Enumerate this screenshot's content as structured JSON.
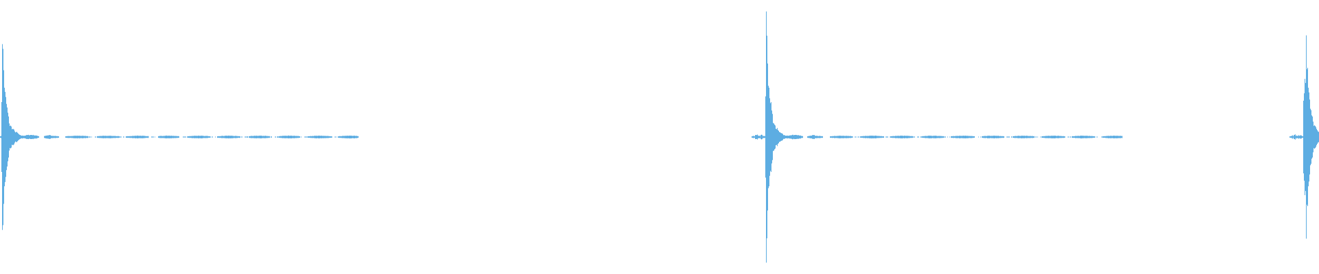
{
  "chart_data": {
    "type": "area",
    "variant": "audio-waveform",
    "color": "#5dade2",
    "background": "#ffffff",
    "axes_visible": false,
    "grid": false,
    "ylim": [
      -1,
      1
    ],
    "xlim": [
      0,
      1
    ],
    "events": [
      {
        "t": 0.001,
        "peak_amplitude": 0.62,
        "lower_peak": -0.62
      },
      {
        "t": 0.58,
        "peak_amplitude": 0.74,
        "lower_peak": -0.73
      },
      {
        "t": 0.988,
        "peak_amplitude": 0.58,
        "lower_peak": -0.59
      }
    ]
  }
}
